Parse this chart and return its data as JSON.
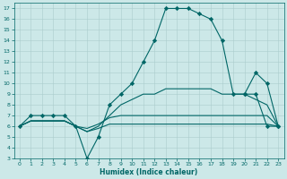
{
  "xlabel": "Humidex (Indice chaleur)",
  "bg_color": "#cce8e8",
  "grid_color": "#aacccc",
  "line_color": "#006666",
  "xlim": [
    -0.5,
    23.5
  ],
  "ylim": [
    3,
    17.5
  ],
  "xticks": [
    0,
    1,
    2,
    3,
    4,
    5,
    6,
    7,
    8,
    9,
    10,
    11,
    12,
    13,
    14,
    15,
    16,
    17,
    18,
    19,
    20,
    21,
    22,
    23
  ],
  "yticks": [
    3,
    4,
    5,
    6,
    7,
    8,
    9,
    10,
    11,
    12,
    13,
    14,
    15,
    16,
    17
  ],
  "lines": [
    {
      "x": [
        0,
        1,
        2,
        3,
        4,
        5,
        6,
        7,
        8,
        9,
        10,
        11,
        12,
        13,
        14,
        15,
        16,
        17,
        18,
        19,
        20,
        21,
        22,
        23
      ],
      "y": [
        6,
        7,
        7,
        7,
        7,
        6,
        3,
        5,
        8,
        9,
        10,
        12,
        14,
        17,
        17,
        17,
        16.5,
        16,
        14,
        9,
        9,
        9,
        6,
        6
      ],
      "marker": "D",
      "ms": 2.2
    },
    {
      "x": [
        0,
        1,
        2,
        3,
        4,
        5,
        6,
        7,
        8,
        9,
        10,
        11,
        12,
        13,
        14,
        15,
        16,
        17,
        18,
        19,
        20,
        21,
        22,
        23
      ],
      "y": [
        6,
        6.5,
        6.5,
        6.5,
        6.5,
        6,
        5.5,
        6,
        7,
        8,
        8.5,
        9,
        9,
        9.5,
        9.5,
        9.5,
        9.5,
        9.5,
        9,
        9,
        9,
        8.5,
        8,
        6
      ],
      "marker": null,
      "ms": 0
    },
    {
      "x": [
        0,
        1,
        2,
        3,
        4,
        5,
        6,
        7,
        8,
        9,
        10,
        11,
        12,
        13,
        14,
        15,
        16,
        17,
        18,
        19,
        20,
        21,
        22,
        23
      ],
      "y": [
        6,
        6.5,
        6.5,
        6.5,
        6.5,
        6,
        5.8,
        6.2,
        6.8,
        7,
        7,
        7,
        7,
        7,
        7,
        7,
        7,
        7,
        7,
        7,
        7,
        7,
        7,
        6
      ],
      "marker": null,
      "ms": 0
    },
    {
      "x": [
        0,
        1,
        2,
        3,
        4,
        5,
        6,
        7,
        8,
        9,
        10,
        11,
        12,
        13,
        14,
        15,
        16,
        17,
        18,
        19,
        20,
        21,
        22,
        23
      ],
      "y": [
        6,
        6.5,
        6.5,
        6.5,
        6.5,
        6,
        5.5,
        5.8,
        6.2,
        6.2,
        6.2,
        6.2,
        6.2,
        6.2,
        6.2,
        6.2,
        6.2,
        6.2,
        6.2,
        6.2,
        6.2,
        6.2,
        6.2,
        6
      ],
      "marker": null,
      "ms": 0
    },
    {
      "x": [
        20,
        21,
        22,
        23
      ],
      "y": [
        9,
        11,
        10,
        6
      ],
      "marker": "D",
      "ms": 2.2
    }
  ],
  "xlabel_fontsize": 5.5,
  "xlabel_fontweight": "bold",
  "tick_labelsize": 4.5,
  "spine_lw": 0.5,
  "grid_lw": 0.4,
  "line_lw": 0.8
}
